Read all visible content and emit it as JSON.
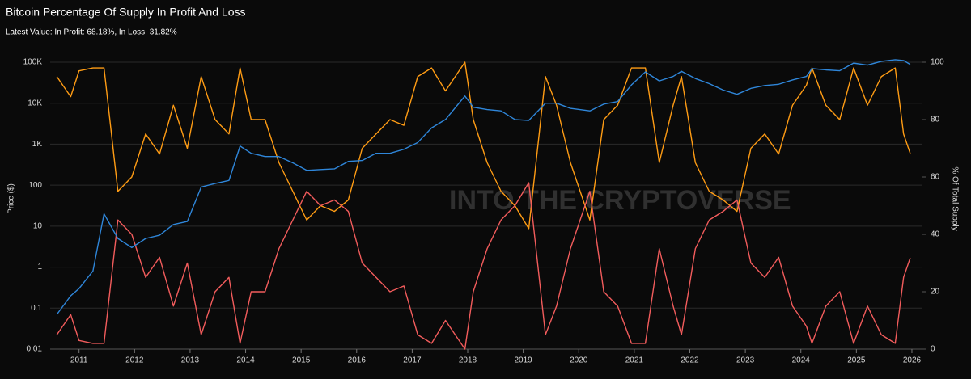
{
  "chart_data": {
    "type": "line",
    "title": "Bitcoin Percentage Of Supply In Profit And Loss",
    "subtitle": "Latest Value: In Profit: 68.18%, In Loss: 31.82%",
    "watermark": "INTO THE CRYPTOVERSE",
    "y_label": "Price ($)",
    "y2_label": "% Of Total Supply",
    "ylog": true,
    "grid": true,
    "x": [
      2010.6,
      2010.85,
      2011.0,
      2011.25,
      2011.45,
      2011.7,
      2011.95,
      2012.2,
      2012.45,
      2012.7,
      2012.95,
      2013.2,
      2013.45,
      2013.7,
      2013.9,
      2014.1,
      2014.35,
      2014.6,
      2014.85,
      2015.1,
      2015.35,
      2015.6,
      2015.85,
      2016.1,
      2016.35,
      2016.6,
      2016.85,
      2017.1,
      2017.35,
      2017.6,
      2017.95,
      2018.1,
      2018.35,
      2018.6,
      2018.85,
      2019.1,
      2019.4,
      2019.6,
      2019.85,
      2020.2,
      2020.45,
      2020.7,
      2020.95,
      2021.2,
      2021.45,
      2021.7,
      2021.85,
      2022.1,
      2022.35,
      2022.6,
      2022.85,
      2023.1,
      2023.35,
      2023.6,
      2023.85,
      2024.1,
      2024.2,
      2024.45,
      2024.7,
      2024.95,
      2025.2,
      2025.45,
      2025.7,
      2025.85,
      2025.97
    ],
    "xlim": [
      2010.48,
      2026.19
    ],
    "xticks": [
      2011,
      2012,
      2013,
      2014,
      2015,
      2016,
      2017,
      2018,
      2019,
      2020,
      2021,
      2022,
      2023,
      2024,
      2025,
      2026
    ],
    "ylim": [
      0.01,
      100000
    ],
    "yticks": [
      0.01,
      0.1,
      1,
      10,
      100,
      {
        "value": 1000,
        "label": "1K"
      },
      {
        "value": 10000,
        "label": "10K"
      },
      {
        "value": 100000,
        "label": "100K"
      }
    ],
    "y2lim": [
      0,
      100
    ],
    "y2ticks": [
      0,
      20,
      40,
      60,
      80,
      100
    ],
    "series": [
      {
        "color": "#ff9c14",
        "axis": "y2",
        "values": [
          95,
          88,
          97,
          98,
          98,
          55,
          60,
          75,
          68,
          85,
          70,
          95,
          80,
          75,
          98,
          80,
          80,
          65,
          55,
          45,
          50,
          48,
          52,
          70,
          75,
          80,
          78,
          95,
          98,
          90,
          100,
          80,
          65,
          55,
          50,
          42,
          95,
          85,
          65,
          45,
          80,
          85,
          98,
          98,
          65,
          85,
          95,
          65,
          55,
          52,
          48,
          70,
          75,
          68,
          85,
          92,
          98,
          85,
          80,
          98,
          85,
          95,
          98,
          75,
          68.18
        ]
      },
      {
        "color": "#f25c5c",
        "axis": "y2",
        "values": [
          5,
          12,
          3,
          2,
          2,
          45,
          40,
          25,
          32,
          15,
          30,
          5,
          20,
          25,
          2,
          20,
          20,
          35,
          45,
          55,
          50,
          52,
          48,
          30,
          25,
          20,
          22,
          5,
          2,
          10,
          0,
          20,
          35,
          45,
          50,
          58,
          5,
          15,
          35,
          55,
          20,
          15,
          2,
          2,
          35,
          15,
          5,
          35,
          45,
          48,
          52,
          30,
          25,
          32,
          15,
          8,
          2,
          15,
          20,
          2,
          15,
          5,
          2,
          25,
          31.82
        ]
      },
      {
        "color": "#2f86d9",
        "axis": "y",
        "values": [
          0.07,
          0.2,
          0.3,
          0.8,
          20,
          5,
          3,
          5,
          6,
          11,
          13,
          90,
          110,
          130,
          900,
          600,
          500,
          500,
          350,
          230,
          240,
          250,
          380,
          400,
          600,
          600,
          750,
          1100,
          2500,
          4000,
          15000,
          8000,
          7000,
          6500,
          4000,
          3800,
          10000,
          10000,
          7500,
          6500,
          9500,
          11000,
          28000,
          58000,
          35000,
          45000,
          60000,
          40000,
          30000,
          21000,
          16500,
          23000,
          27000,
          29000,
          37000,
          45000,
          70000,
          65000,
          62000,
          95000,
          85000,
          105000,
          115000,
          110000,
          88000
        ]
      }
    ]
  }
}
